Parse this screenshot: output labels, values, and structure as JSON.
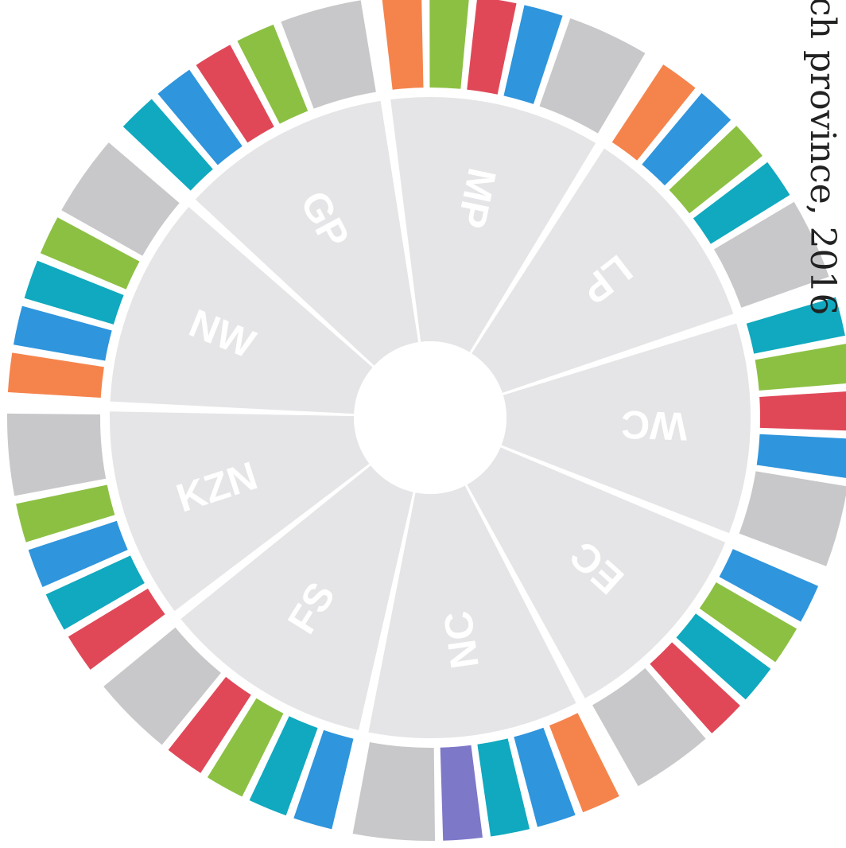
{
  "title_fragment": "ch province, 2016",
  "colors": {
    "orange": "#f5844c",
    "green": "#8cc043",
    "red": "#e04858",
    "blue": "#2f95dc",
    "teal": "#10a9bf",
    "gray": "#c8c8ca",
    "purple": "#7e78c9",
    "hub": "#e5e5e7"
  },
  "chart_data": {
    "type": "pie",
    "title": "",
    "provinces": [
      {
        "label": "MP",
        "bars": [
          "orange",
          "green",
          "red",
          "blue",
          "gray"
        ]
      },
      {
        "label": "LP",
        "bars": [
          "orange",
          "blue",
          "green",
          "teal",
          "gray"
        ]
      },
      {
        "label": "WC",
        "bars": [
          "teal",
          "green",
          "red",
          "blue",
          "gray"
        ]
      },
      {
        "label": "EC",
        "bars": [
          "blue",
          "green",
          "teal",
          "red",
          "gray"
        ]
      },
      {
        "label": "NC",
        "bars": [
          "orange",
          "blue",
          "teal",
          "purple",
          "gray"
        ]
      },
      {
        "label": "FS",
        "bars": [
          "blue",
          "teal",
          "green",
          "red",
          "gray"
        ]
      },
      {
        "label": "KZN",
        "bars": [
          "red",
          "teal",
          "blue",
          "green",
          "gray"
        ]
      },
      {
        "label": "NW",
        "bars": [
          "orange",
          "blue",
          "teal",
          "green",
          "gray"
        ]
      },
      {
        "label": "GP",
        "bars": [
          "teal",
          "blue",
          "red",
          "green",
          "gray"
        ]
      }
    ]
  }
}
